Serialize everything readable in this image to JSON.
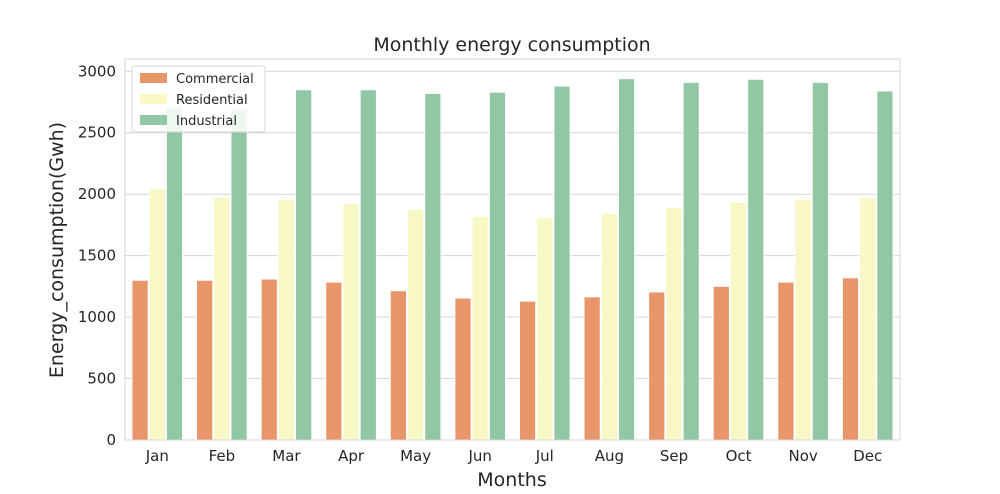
{
  "chart_data": {
    "type": "bar",
    "title": "Monthly energy consumption",
    "xlabel": "Months",
    "ylabel": "Energy_consumption(Gwh)",
    "categories": [
      "Jan",
      "Feb",
      "Mar",
      "Apr",
      "May",
      "Jun",
      "Jul",
      "Aug",
      "Sep",
      "Oct",
      "Nov",
      "Dec"
    ],
    "series": [
      {
        "name": "Commercial",
        "color": "#e8956a",
        "values": [
          1300,
          1300,
          1310,
          1285,
          1215,
          1155,
          1130,
          1165,
          1205,
          1250,
          1285,
          1320
        ]
      },
      {
        "name": "Residential",
        "color": "#f8f8c4",
        "values": [
          2045,
          1975,
          1960,
          1925,
          1875,
          1820,
          1810,
          1845,
          1890,
          1935,
          1960,
          1970
        ]
      },
      {
        "name": "Industrial",
        "color": "#92c7a4",
        "values": [
          2710,
          2695,
          2850,
          2850,
          2820,
          2830,
          2880,
          2940,
          2910,
          2935,
          2910,
          2840
        ]
      }
    ],
    "ylim": [
      0,
      3100
    ],
    "yticks": [
      0,
      500,
      1000,
      1500,
      2000,
      2500,
      3000
    ],
    "grid": "horizontal",
    "legend_position": "top-left"
  }
}
